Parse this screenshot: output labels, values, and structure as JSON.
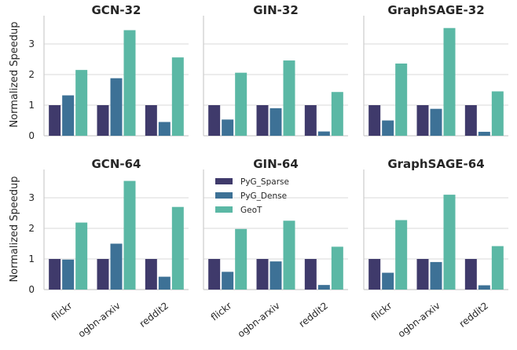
{
  "chart_data": {
    "type": "bar",
    "ylabel": "Normalized Speedup",
    "ylim": [
      0,
      3.7
    ],
    "yticks": [
      "0",
      "1",
      "2",
      "3"
    ],
    "categories": [
      "flickr",
      "ogbn-arxiv",
      "reddit2"
    ],
    "series_names": [
      "PyG_Sparse",
      "PyG_Dense",
      "GeoT"
    ],
    "colors": {
      "PyG_Sparse": "#3f3a6b",
      "PyG_Dense": "#3d7196",
      "GeoT": "#5bb8a5"
    },
    "grid": "horizontal",
    "legend_position": "top-left of GIN-64 panel",
    "panels": [
      {
        "title": "GCN-32",
        "series": [
          {
            "name": "PyG_Sparse",
            "values": [
              1.0,
              1.0,
              1.0
            ]
          },
          {
            "name": "PyG_Dense",
            "values": [
              1.32,
              1.88,
              0.45
            ]
          },
          {
            "name": "GeoT",
            "values": [
              2.15,
              3.45,
              2.56
            ]
          }
        ]
      },
      {
        "title": "GIN-32",
        "series": [
          {
            "name": "PyG_Sparse",
            "values": [
              1.0,
              1.0,
              1.0
            ]
          },
          {
            "name": "PyG_Dense",
            "values": [
              0.53,
              0.9,
              0.14
            ]
          },
          {
            "name": "GeoT",
            "values": [
              2.06,
              2.46,
              1.43
            ]
          }
        ]
      },
      {
        "title": "GraphSAGE-32",
        "series": [
          {
            "name": "PyG_Sparse",
            "values": [
              1.0,
              1.0,
              1.0
            ]
          },
          {
            "name": "PyG_Dense",
            "values": [
              0.5,
              0.88,
              0.13
            ]
          },
          {
            "name": "GeoT",
            "values": [
              2.36,
              3.52,
              1.45
            ]
          }
        ]
      },
      {
        "title": "GCN-64",
        "series": [
          {
            "name": "PyG_Sparse",
            "values": [
              1.0,
              1.0,
              1.0
            ]
          },
          {
            "name": "PyG_Dense",
            "values": [
              0.98,
              1.5,
              0.42
            ]
          },
          {
            "name": "GeoT",
            "values": [
              2.19,
              3.55,
              2.7
            ]
          }
        ]
      },
      {
        "title": "GIN-64",
        "series": [
          {
            "name": "PyG_Sparse",
            "values": [
              1.0,
              1.0,
              1.0
            ]
          },
          {
            "name": "PyG_Dense",
            "values": [
              0.58,
              0.92,
              0.15
            ]
          },
          {
            "name": "GeoT",
            "values": [
              1.98,
              2.25,
              1.4
            ]
          }
        ]
      },
      {
        "title": "GraphSAGE-64",
        "series": [
          {
            "name": "PyG_Sparse",
            "values": [
              1.0,
              1.0,
              1.0
            ]
          },
          {
            "name": "PyG_Dense",
            "values": [
              0.55,
              0.9,
              0.14
            ]
          },
          {
            "name": "GeoT",
            "values": [
              2.27,
              3.1,
              1.42
            ]
          }
        ]
      }
    ]
  }
}
